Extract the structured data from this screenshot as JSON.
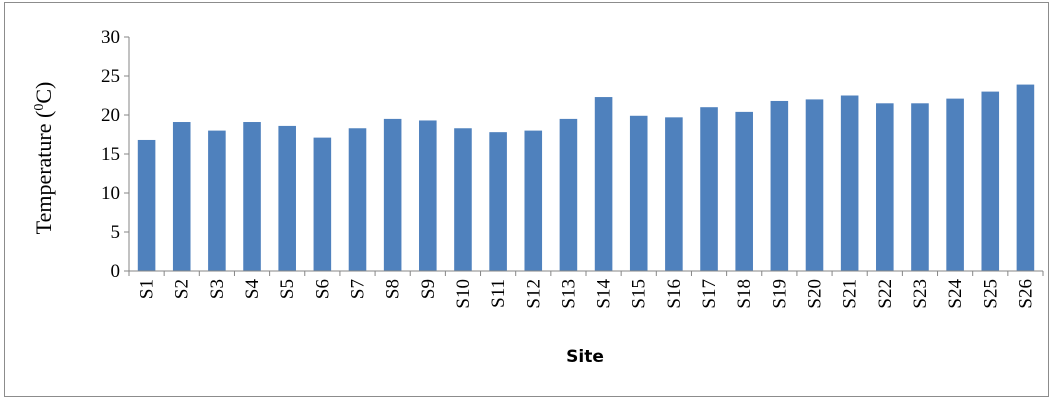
{
  "chart_data": {
    "type": "bar",
    "title": "",
    "xlabel": "Site",
    "ylabel": "Temperature (",
    "ylabel_sup": "0",
    "ylabel_unit": "C)",
    "ylim": [
      0,
      30
    ],
    "yticks": [
      0,
      5,
      10,
      15,
      20,
      25,
      30
    ],
    "grid": false,
    "legend": "none",
    "bar_color": "#4f81bd",
    "categories": [
      "S1",
      "S2",
      "S3",
      "S4",
      "S5",
      "S6",
      "S7",
      "S8",
      "S9",
      "S10",
      "S11",
      "S12",
      "S13",
      "S14",
      "S15",
      "S16",
      "S17",
      "S18",
      "S19",
      "S20",
      "S21",
      "S22",
      "S23",
      "S24",
      "S25",
      "S26"
    ],
    "values": [
      16.8,
      19.1,
      18.0,
      19.1,
      18.6,
      17.1,
      18.3,
      19.5,
      19.3,
      18.3,
      17.8,
      18.0,
      19.5,
      22.3,
      19.9,
      19.7,
      21.0,
      20.4,
      21.8,
      22.0,
      22.5,
      21.5,
      21.5,
      22.1,
      23.0,
      23.9
    ]
  }
}
